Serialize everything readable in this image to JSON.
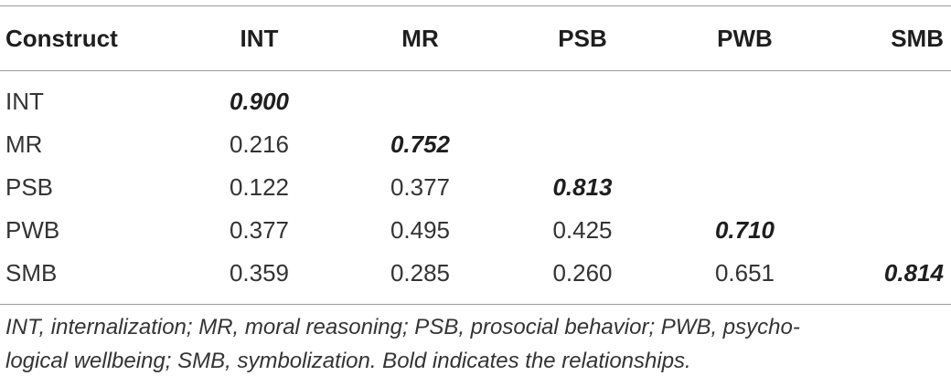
{
  "table": {
    "headers": [
      "Construct",
      "INT",
      "MR",
      "PSB",
      "PWB",
      "SMB"
    ],
    "rows": [
      {
        "label": "INT",
        "cells": [
          "0.900",
          "",
          "",
          "",
          ""
        ]
      },
      {
        "label": "MR",
        "cells": [
          "0.216",
          "0.752",
          "",
          "",
          ""
        ]
      },
      {
        "label": "PSB",
        "cells": [
          "0.122",
          "0.377",
          "0.813",
          "",
          ""
        ]
      },
      {
        "label": "PWB",
        "cells": [
          "0.377",
          "0.495",
          "0.425",
          "0.710",
          ""
        ]
      },
      {
        "label": "SMB",
        "cells": [
          "0.359",
          "0.285",
          "0.260",
          "0.651",
          "0.814"
        ]
      }
    ]
  },
  "footnote": {
    "line1": "INT, internalization; MR, moral reasoning; PSB, prosocial behavior; PWB, psycho-",
    "line2": "logical wellbeing; SMB, symbolization. Bold indicates the relationships."
  }
}
